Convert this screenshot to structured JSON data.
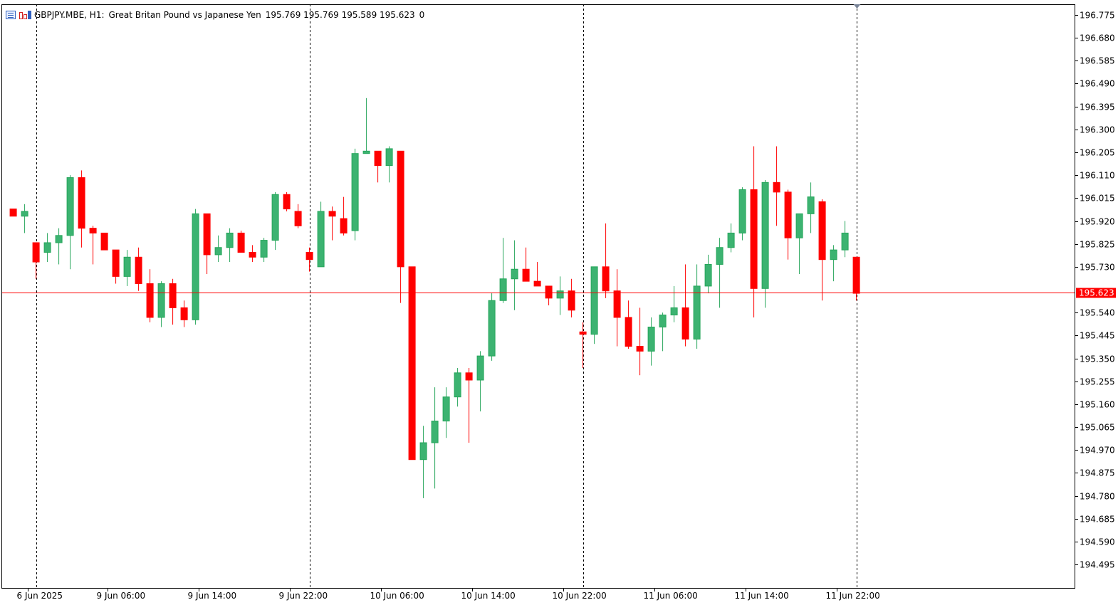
{
  "header": {
    "symbol": "GBPJPY.MBE, H1:",
    "description": "Great Britan Pound vs Japanese Yen",
    "ohlc": "195.769 195.769 195.589 195.623",
    "volume": "0"
  },
  "icons": [
    "list-icon",
    "chart-bars-icon"
  ],
  "colors": {
    "bull": "#26a65b",
    "bull_fill": "#3cb371",
    "bear": "#ff0000",
    "price_line": "#ff0000",
    "axis": "#000000",
    "separator": "#000000"
  },
  "chart_data": {
    "type": "candlestick",
    "timeframe": "H1",
    "ylim": [
      194.4,
      196.81
    ],
    "y_ticks": [
      "196.775",
      "196.680",
      "196.585",
      "196.490",
      "196.395",
      "196.300",
      "196.205",
      "196.110",
      "196.015",
      "195.920",
      "195.825",
      "195.730",
      "195.540",
      "195.445",
      "195.350",
      "195.255",
      "195.160",
      "195.065",
      "194.970",
      "194.875",
      "194.780",
      "194.685",
      "194.590",
      "194.495"
    ],
    "x_labels": [
      "6 Jun 2025",
      "9 Jun 06:00",
      "9 Jun 14:00",
      "9 Jun 22:00",
      "10 Jun 06:00",
      "10 Jun 14:00",
      "10 Jun 22:00",
      "11 Jun 06:00",
      "11 Jun 14:00",
      "11 Jun 22:00"
    ],
    "x_label_index": [
      1.3,
      8.3,
      16.3,
      24.3,
      32.3,
      40.3,
      48.3,
      56.3,
      64.3,
      72.3
    ],
    "day_separators_index": [
      2,
      26,
      50,
      74
    ],
    "current_price": "195.623",
    "current_price_value": 195.623,
    "candles": [
      [
        195.97,
        195.97,
        195.94,
        195.94
      ],
      [
        195.94,
        195.99,
        195.87,
        195.96
      ],
      [
        195.83,
        195.83,
        195.68,
        195.75
      ],
      [
        195.79,
        195.87,
        195.75,
        195.83
      ],
      [
        195.83,
        195.89,
        195.74,
        195.86
      ],
      [
        195.86,
        196.11,
        195.72,
        196.1
      ],
      [
        196.1,
        196.13,
        195.81,
        195.89
      ],
      [
        195.89,
        195.9,
        195.74,
        195.87
      ],
      [
        195.87,
        195.87,
        195.8,
        195.8
      ],
      [
        195.8,
        195.8,
        195.66,
        195.69
      ],
      [
        195.69,
        195.8,
        195.65,
        195.77
      ],
      [
        195.77,
        195.81,
        195.63,
        195.66
      ],
      [
        195.66,
        195.72,
        195.5,
        195.52
      ],
      [
        195.52,
        195.67,
        195.48,
        195.66
      ],
      [
        195.66,
        195.68,
        195.49,
        195.56
      ],
      [
        195.56,
        195.59,
        195.48,
        195.51
      ],
      [
        195.51,
        195.97,
        195.49,
        195.95
      ],
      [
        195.95,
        195.95,
        195.7,
        195.78
      ],
      [
        195.78,
        195.86,
        195.75,
        195.81
      ],
      [
        195.81,
        195.89,
        195.75,
        195.87
      ],
      [
        195.87,
        195.88,
        195.79,
        195.79
      ],
      [
        195.79,
        195.82,
        195.75,
        195.77
      ],
      [
        195.77,
        195.85,
        195.75,
        195.84
      ],
      [
        195.84,
        196.04,
        195.8,
        196.03
      ],
      [
        196.03,
        196.04,
        195.96,
        195.97
      ],
      [
        195.96,
        195.99,
        195.89,
        195.9
      ],
      [
        195.79,
        195.81,
        195.71,
        195.76
      ],
      [
        195.73,
        196.0,
        195.73,
        195.96
      ],
      [
        195.96,
        195.98,
        195.84,
        195.94
      ],
      [
        195.93,
        196.02,
        195.86,
        195.87
      ],
      [
        195.88,
        196.22,
        195.84,
        196.2
      ],
      [
        196.2,
        196.43,
        196.2,
        196.21
      ],
      [
        196.21,
        196.21,
        196.08,
        196.15
      ],
      [
        196.15,
        196.23,
        196.08,
        196.22
      ],
      [
        196.21,
        196.21,
        195.58,
        195.73
      ],
      [
        195.73,
        195.73,
        194.93,
        194.93
      ],
      [
        194.93,
        195.07,
        194.77,
        195.0
      ],
      [
        195.0,
        195.23,
        194.81,
        195.09
      ],
      [
        195.09,
        195.23,
        195.02,
        195.19
      ],
      [
        195.19,
        195.31,
        195.15,
        195.29
      ],
      [
        195.29,
        195.31,
        195.0,
        195.26
      ],
      [
        195.26,
        195.38,
        195.13,
        195.36
      ],
      [
        195.36,
        195.62,
        195.34,
        195.59
      ],
      [
        195.59,
        195.85,
        195.58,
        195.68
      ],
      [
        195.68,
        195.84,
        195.55,
        195.72
      ],
      [
        195.72,
        195.81,
        195.67,
        195.67
      ],
      [
        195.67,
        195.75,
        195.65,
        195.65
      ],
      [
        195.65,
        195.65,
        195.57,
        195.6
      ],
      [
        195.6,
        195.69,
        195.53,
        195.63
      ],
      [
        195.63,
        195.68,
        195.52,
        195.55
      ],
      [
        195.46,
        195.5,
        195.31,
        195.45
      ],
      [
        195.45,
        195.73,
        195.41,
        195.73
      ],
      [
        195.73,
        195.91,
        195.6,
        195.63
      ],
      [
        195.63,
        195.72,
        195.4,
        195.52
      ],
      [
        195.52,
        195.59,
        195.39,
        195.4
      ],
      [
        195.4,
        195.56,
        195.28,
        195.38
      ],
      [
        195.38,
        195.52,
        195.32,
        195.48
      ],
      [
        195.48,
        195.54,
        195.38,
        195.53
      ],
      [
        195.53,
        195.65,
        195.5,
        195.56
      ],
      [
        195.56,
        195.74,
        195.4,
        195.43
      ],
      [
        195.43,
        195.74,
        195.39,
        195.65
      ],
      [
        195.65,
        195.78,
        195.62,
        195.74
      ],
      [
        195.74,
        195.85,
        195.56,
        195.81
      ],
      [
        195.81,
        195.91,
        195.79,
        195.87
      ],
      [
        195.87,
        196.06,
        195.84,
        196.05
      ],
      [
        196.05,
        196.23,
        195.52,
        195.64
      ],
      [
        195.64,
        196.09,
        195.56,
        196.08
      ],
      [
        196.08,
        196.23,
        195.9,
        196.04
      ],
      [
        196.04,
        196.05,
        195.76,
        195.85
      ],
      [
        195.85,
        195.95,
        195.7,
        195.95
      ],
      [
        195.95,
        196.08,
        195.87,
        196.02
      ],
      [
        196.0,
        196.01,
        195.59,
        195.76
      ],
      [
        195.76,
        195.82,
        195.67,
        195.8
      ],
      [
        195.8,
        195.92,
        195.77,
        195.87
      ],
      [
        195.77,
        195.77,
        195.59,
        195.62
      ]
    ]
  }
}
